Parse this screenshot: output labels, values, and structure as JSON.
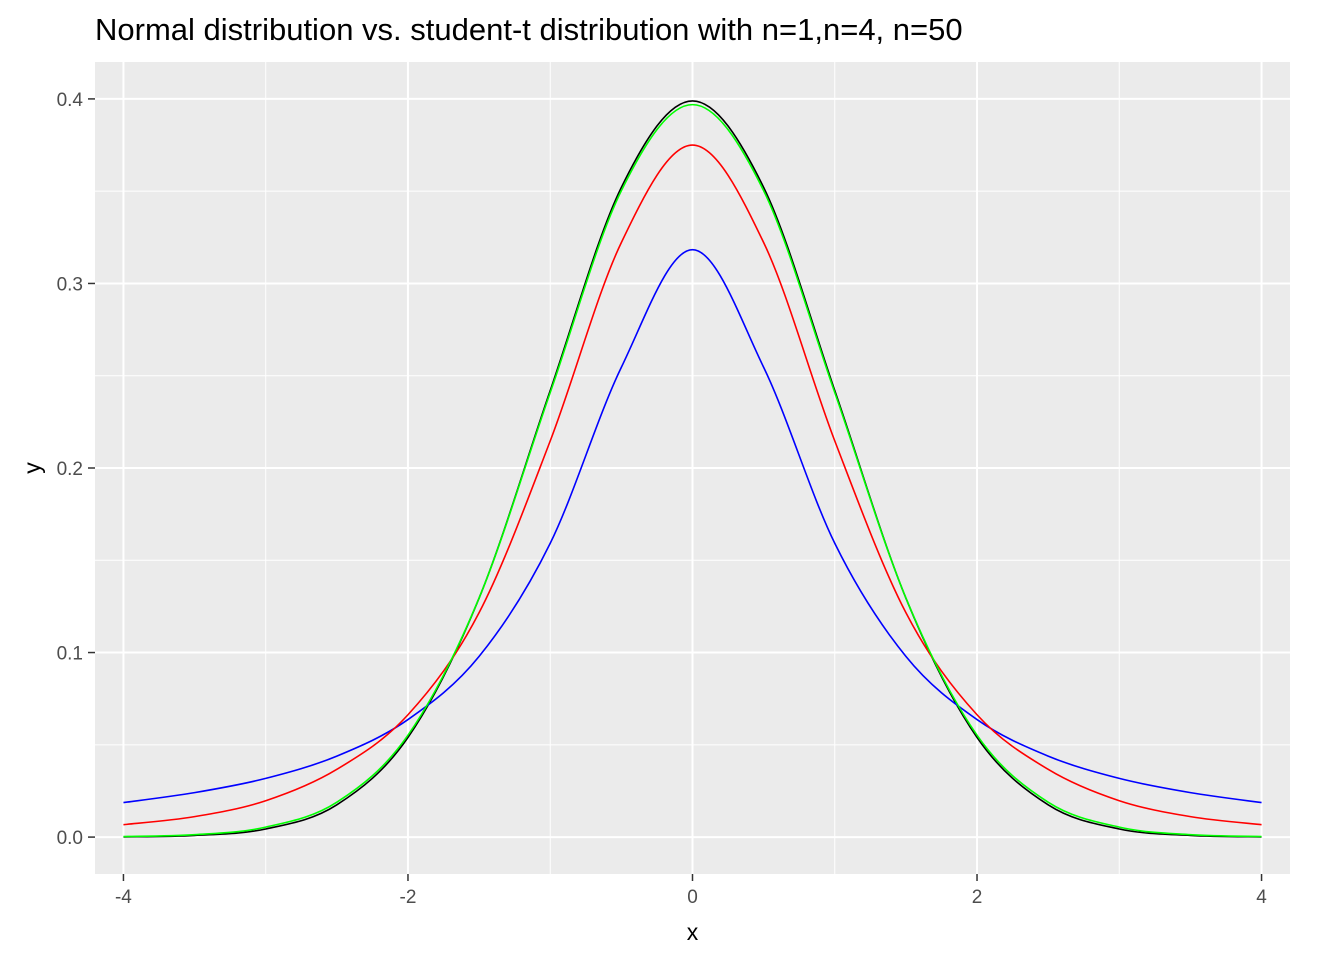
{
  "chart_data": {
    "type": "line",
    "title": "Normal distribution vs. student-t distribution with n=1,n=4, n=50",
    "xlabel": "x",
    "ylabel": "y",
    "xlim": [
      -4.2,
      4.2
    ],
    "ylim": [
      -0.02,
      0.42
    ],
    "x_ticks": [
      -4,
      -2,
      0,
      2,
      4
    ],
    "y_ticks": [
      0.0,
      0.1,
      0.2,
      0.3,
      0.4
    ],
    "x_tick_labels": [
      "-4",
      "-2",
      "0",
      "2",
      "4"
    ],
    "y_tick_labels": [
      "0.0",
      "0.1",
      "0.2",
      "0.3",
      "0.4"
    ],
    "grid": true,
    "background": "#ebebeb",
    "x": [
      -4,
      -3.5,
      -3,
      -2.5,
      -2,
      -1.5,
      -1,
      -0.5,
      0,
      0.5,
      1,
      1.5,
      2,
      2.5,
      3,
      3.5,
      4
    ],
    "series": [
      {
        "color": "#000000",
        "values": [
          0.0001,
          0.0009,
          0.0044,
          0.0175,
          0.054,
          0.1295,
          0.242,
          0.3521,
          0.3989,
          0.3521,
          0.242,
          0.1295,
          0.054,
          0.0175,
          0.0044,
          0.0009,
          0.0001
        ]
      },
      {
        "color": "#0000ff",
        "values": [
          0.0187,
          0.0241,
          0.0318,
          0.0439,
          0.0637,
          0.0979,
          0.1592,
          0.2546,
          0.3183,
          0.2546,
          0.1592,
          0.0979,
          0.0637,
          0.0439,
          0.0318,
          0.0241,
          0.0187
        ]
      },
      {
        "color": "#ff0000",
        "values": [
          0.0067,
          0.0111,
          0.0197,
          0.0367,
          0.0663,
          0.1216,
          0.2147,
          0.3222,
          0.375,
          0.3222,
          0.2147,
          0.1216,
          0.0663,
          0.0367,
          0.0197,
          0.0111,
          0.0067
        ]
      },
      {
        "color": "#00ff00",
        "values": [
          0.0003,
          0.0013,
          0.0054,
          0.0189,
          0.0552,
          0.1296,
          0.2409,
          0.3503,
          0.3969,
          0.3503,
          0.2409,
          0.1296,
          0.0552,
          0.0189,
          0.0054,
          0.0013,
          0.0003
        ]
      }
    ]
  }
}
